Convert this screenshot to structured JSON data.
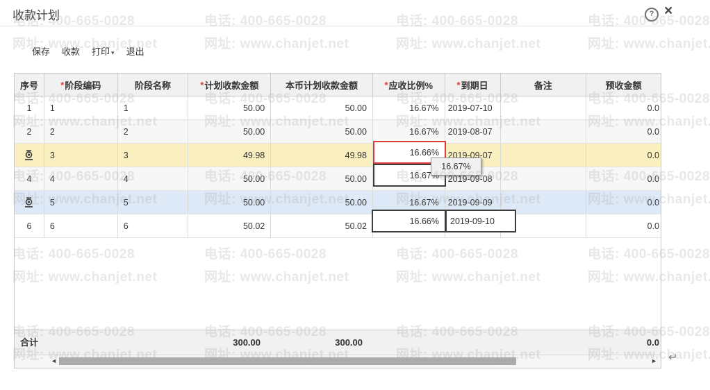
{
  "watermark": {
    "phone": "电话: 400-665-0028",
    "site": "网址: www.chanjet.net"
  },
  "window": {
    "title": "收款计划",
    "help_icon": "?",
    "close_icon": "×"
  },
  "toolbar": {
    "save": "保存",
    "receive": "收款",
    "print": "打印",
    "print_caret": "▾",
    "exit": "退出"
  },
  "grid": {
    "columns": [
      {
        "key": "seq",
        "label": "序号",
        "required": false
      },
      {
        "key": "code",
        "label": "阶段编码",
        "required": true
      },
      {
        "key": "name",
        "label": "阶段名称",
        "required": false
      },
      {
        "key": "amount",
        "label": "计划收款金额",
        "required": true
      },
      {
        "key": "amount_base",
        "label": "本币计划收款金额",
        "required": false
      },
      {
        "key": "ratio",
        "label": "应收比例%",
        "required": true
      },
      {
        "key": "due",
        "label": "到期日",
        "required": true
      },
      {
        "key": "memo",
        "label": "备注",
        "required": false
      },
      {
        "key": "advance",
        "label": "预收金额",
        "required": false
      }
    ],
    "rows": [
      {
        "seq": "1",
        "has_icon": false,
        "code": "1",
        "name": "1",
        "amount": "50.00",
        "amount_base": "50.00",
        "ratio": "16.67%",
        "due": "2019-07-10",
        "memo": "",
        "advance": "0.0",
        "bg": "plain"
      },
      {
        "seq": "2",
        "has_icon": false,
        "code": "2",
        "name": "2",
        "amount": "50.00",
        "amount_base": "50.00",
        "ratio": "16.67%",
        "due": "2019-08-07",
        "memo": "",
        "advance": "0.0",
        "bg": "alt"
      },
      {
        "seq": "",
        "has_icon": true,
        "code": "3",
        "name": "3",
        "amount": "49.98",
        "amount_base": "49.98",
        "ratio": "16.66%",
        "due": "2019-09-07",
        "memo": "",
        "advance": "0.0",
        "bg": "yellow"
      },
      {
        "seq": "4",
        "has_icon": false,
        "code": "4",
        "name": "4",
        "amount": "50.00",
        "amount_base": "50.00",
        "ratio": "16.67%",
        "due": "2019-09-08",
        "memo": "",
        "advance": "0.0",
        "bg": "alt"
      },
      {
        "seq": "",
        "has_icon": true,
        "code": "5",
        "name": "5",
        "amount": "50.00",
        "amount_base": "50.00",
        "ratio": "16.67%",
        "due": "2019-09-09",
        "memo": "",
        "advance": "0.0",
        "bg": "blue"
      },
      {
        "seq": "6",
        "has_icon": false,
        "code": "6",
        "name": "6",
        "amount": "50.02",
        "amount_base": "50.02",
        "ratio": "16.66%",
        "due": "2019-09-10",
        "memo": "",
        "advance": "0.0",
        "bg": "plain"
      }
    ],
    "total": {
      "label": "合计",
      "amount": "300.00",
      "amount_base": "300.00",
      "advance": "0.0"
    }
  },
  "editors": {
    "row3_ratio": "16.66%",
    "row4_ratio": "16.67%",
    "row6_ratio": "16.66%",
    "row6_date": "2019-09-10"
  },
  "tooltip": {
    "text": "16.67%"
  },
  "scrollbar": {
    "left_arrow": "◄",
    "right_arrow": "►"
  },
  "misc": {
    "enter_symbol": "↵"
  },
  "colors": {
    "row_selected_yellow": "#f9efbf",
    "row_highlight_blue": "#dde9f7",
    "row_alt_gray": "#f7f7f7",
    "alert_border": "#e23b3b",
    "editor_border": "#3c3c3c",
    "required_asterisk": "#e53935"
  }
}
